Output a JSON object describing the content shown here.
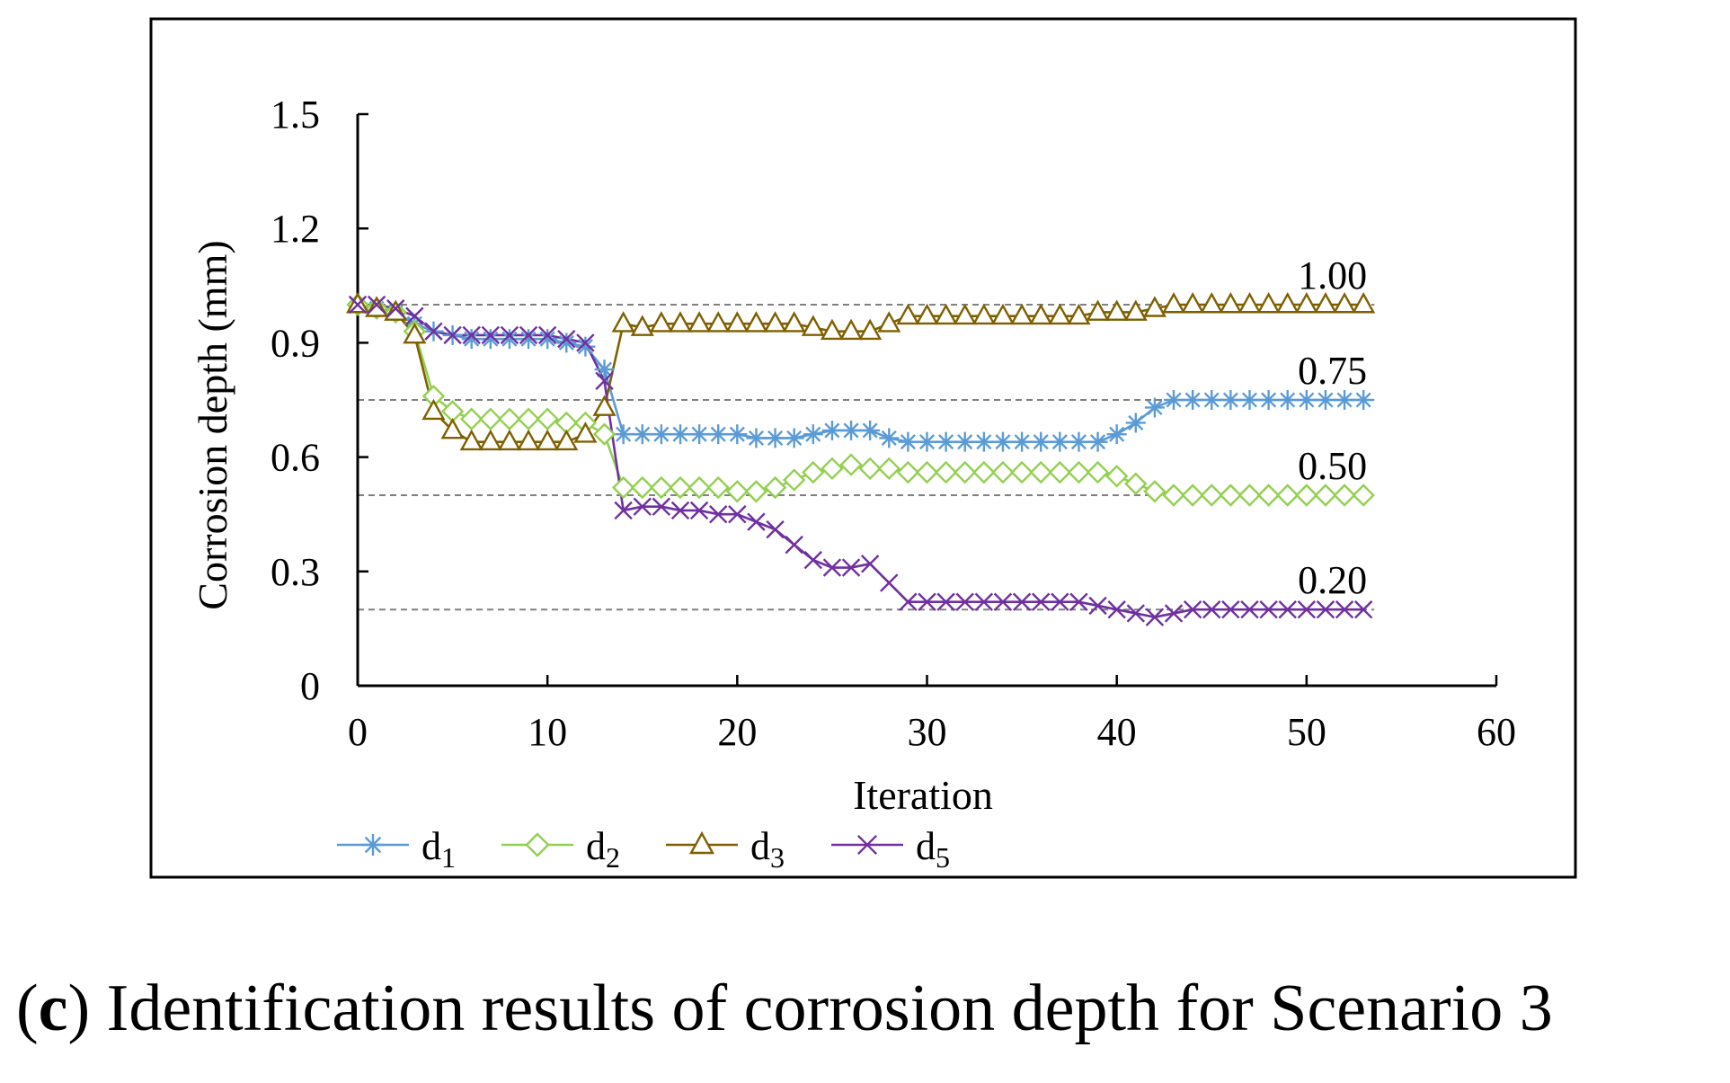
{
  "caption": {
    "open_paren": "(",
    "letter": "c",
    "close_paren": ")",
    "text": " Identification results of corrosion depth for Scenario 3"
  },
  "chart_data": {
    "type": "line",
    "title": "",
    "xlabel": "Iteration",
    "ylabel": "Corrosion depth (mm)",
    "xlim": [
      0,
      60
    ],
    "ylim": [
      0,
      1.5
    ],
    "x_ticks": [
      0,
      10,
      20,
      30,
      40,
      50,
      60
    ],
    "y_ticks": [
      0,
      0.3,
      0.6,
      0.9,
      1.2,
      1.5
    ],
    "x_tick_labels": [
      "0",
      "10",
      "20",
      "30",
      "40",
      "50",
      "60"
    ],
    "y_tick_labels": [
      "0",
      "0.3",
      "0.6",
      "0.9",
      "1.2",
      "1.5"
    ],
    "grid": false,
    "legend_position": "bottom",
    "reference_lines": [
      {
        "value": 1.0,
        "label": "1.00"
      },
      {
        "value": 0.75,
        "label": "0.75"
      },
      {
        "value": 0.5,
        "label": "0.50"
      },
      {
        "value": 0.2,
        "label": "0.20"
      }
    ],
    "x": [
      0,
      1,
      2,
      3,
      4,
      5,
      6,
      7,
      8,
      9,
      10,
      11,
      12,
      13,
      14,
      15,
      16,
      17,
      18,
      19,
      20,
      21,
      22,
      23,
      24,
      25,
      26,
      27,
      28,
      29,
      30,
      31,
      32,
      33,
      34,
      35,
      36,
      37,
      38,
      39,
      40,
      41,
      42,
      43,
      44,
      45,
      46,
      47,
      48,
      49,
      50,
      51,
      52,
      53
    ],
    "series": [
      {
        "name": "d1",
        "base": "d",
        "sub": "1",
        "color": "#5b9bd5",
        "marker": "asterisk",
        "values": [
          1.0,
          0.99,
          0.98,
          0.95,
          0.93,
          0.92,
          0.91,
          0.91,
          0.91,
          0.91,
          0.91,
          0.9,
          0.89,
          0.83,
          0.66,
          0.66,
          0.66,
          0.66,
          0.66,
          0.66,
          0.66,
          0.65,
          0.65,
          0.65,
          0.66,
          0.67,
          0.67,
          0.67,
          0.65,
          0.64,
          0.64,
          0.64,
          0.64,
          0.64,
          0.64,
          0.64,
          0.64,
          0.64,
          0.64,
          0.64,
          0.66,
          0.69,
          0.73,
          0.75,
          0.75,
          0.75,
          0.75,
          0.75,
          0.75,
          0.75,
          0.75,
          0.75,
          0.75,
          0.75
        ]
      },
      {
        "name": "d2",
        "base": "d",
        "sub": "2",
        "color": "#92d050",
        "marker": "diamond",
        "values": [
          1.0,
          0.99,
          0.98,
          0.93,
          0.76,
          0.72,
          0.7,
          0.7,
          0.7,
          0.7,
          0.7,
          0.69,
          0.69,
          0.66,
          0.52,
          0.52,
          0.52,
          0.52,
          0.52,
          0.52,
          0.51,
          0.51,
          0.52,
          0.54,
          0.56,
          0.57,
          0.58,
          0.57,
          0.57,
          0.56,
          0.56,
          0.56,
          0.56,
          0.56,
          0.56,
          0.56,
          0.56,
          0.56,
          0.56,
          0.56,
          0.55,
          0.53,
          0.51,
          0.5,
          0.5,
          0.5,
          0.5,
          0.5,
          0.5,
          0.5,
          0.5,
          0.5,
          0.5,
          0.5
        ]
      },
      {
        "name": "d3",
        "base": "d",
        "sub": "3",
        "color": "#7f6000",
        "marker": "triangle",
        "values": [
          1.0,
          0.99,
          0.98,
          0.92,
          0.72,
          0.67,
          0.64,
          0.64,
          0.64,
          0.64,
          0.64,
          0.64,
          0.66,
          0.73,
          0.95,
          0.94,
          0.95,
          0.95,
          0.95,
          0.95,
          0.95,
          0.95,
          0.95,
          0.95,
          0.94,
          0.93,
          0.93,
          0.93,
          0.95,
          0.97,
          0.97,
          0.97,
          0.97,
          0.97,
          0.97,
          0.97,
          0.97,
          0.97,
          0.97,
          0.98,
          0.98,
          0.98,
          0.99,
          1.0,
          1.0,
          1.0,
          1.0,
          1.0,
          1.0,
          1.0,
          1.0,
          1.0,
          1.0,
          1.0
        ]
      },
      {
        "name": "d5",
        "base": "d",
        "sub": "5",
        "color": "#7030a0",
        "marker": "x",
        "values": [
          1.0,
          1.0,
          0.99,
          0.97,
          0.93,
          0.92,
          0.92,
          0.92,
          0.92,
          0.92,
          0.92,
          0.91,
          0.9,
          0.8,
          0.46,
          0.47,
          0.47,
          0.46,
          0.46,
          0.45,
          0.45,
          0.43,
          0.41,
          0.37,
          0.33,
          0.31,
          0.31,
          0.32,
          0.27,
          0.22,
          0.22,
          0.22,
          0.22,
          0.22,
          0.22,
          0.22,
          0.22,
          0.22,
          0.22,
          0.21,
          0.2,
          0.19,
          0.18,
          0.19,
          0.2,
          0.2,
          0.2,
          0.2,
          0.2,
          0.2,
          0.2,
          0.2,
          0.2,
          0.2
        ]
      }
    ]
  }
}
